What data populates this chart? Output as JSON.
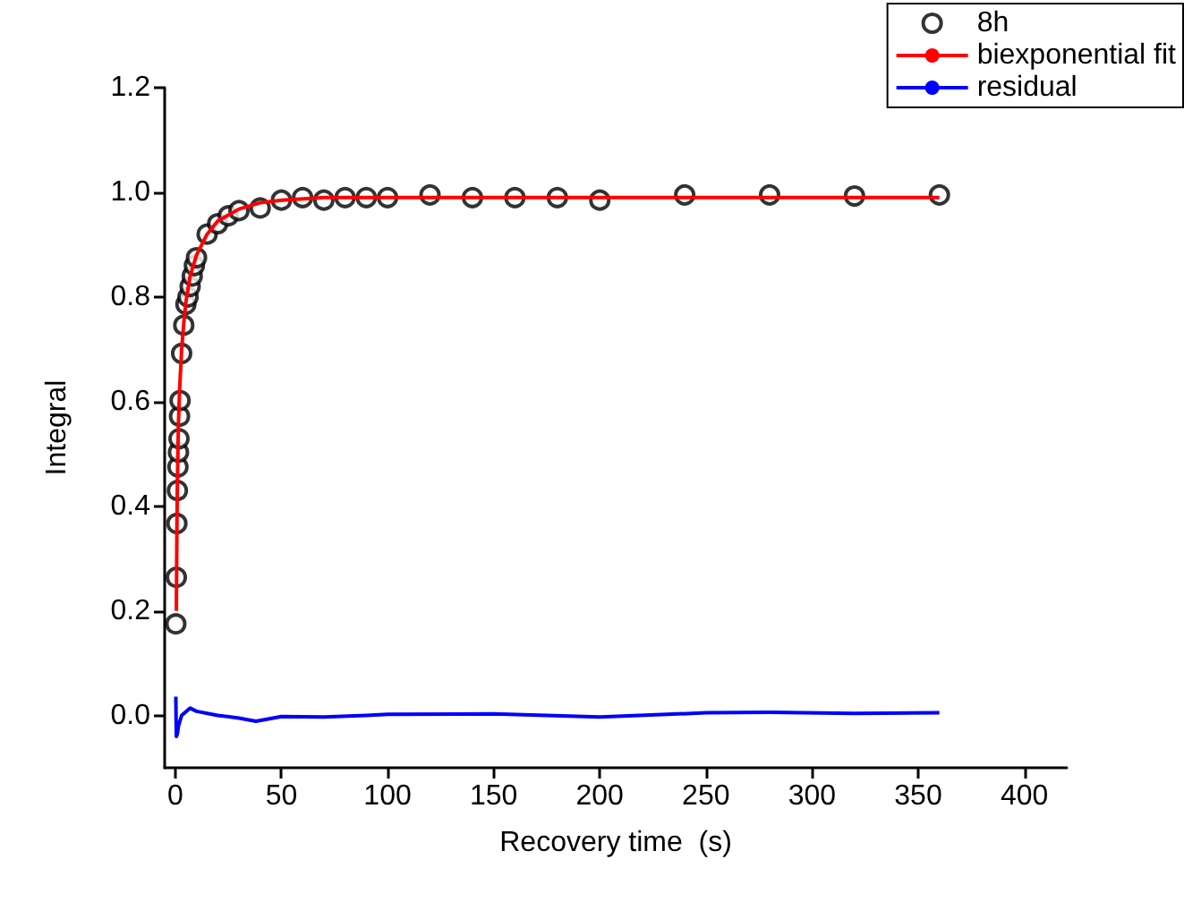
{
  "chart_data": {
    "type": "scatter",
    "xlabel": "Recovery time  (s)",
    "ylabel": "Integral",
    "xlim": [
      -5,
      420
    ],
    "xticks": [
      0,
      50,
      100,
      150,
      200,
      250,
      300,
      350,
      400
    ],
    "ylim": [
      -0.1,
      1.2
    ],
    "yticks": [
      {
        "value": 0,
        "label": "0.0"
      },
      0.2,
      0.4,
      0.6,
      0.8,
      {
        "value": 1,
        "label": "1.0"
      },
      1.2
    ],
    "grid": false,
    "legend": "top right",
    "series": [
      {
        "name": "8h",
        "marker": "circle",
        "color": "#000000",
        "x": [
          0.25,
          0.5,
          0.75,
          1,
          1.25,
          1.5,
          1.75,
          2,
          2.25,
          3,
          4,
          5,
          6,
          7,
          8,
          9,
          10,
          15,
          20,
          25,
          30,
          40,
          50,
          60,
          70,
          80,
          90,
          100,
          120,
          140,
          160,
          180,
          200,
          240,
          280,
          320,
          360
        ],
        "values": [
          0.175,
          0.264,
          0.367,
          0.43,
          0.475,
          0.503,
          0.529,
          0.572,
          0.602,
          0.692,
          0.746,
          0.786,
          0.8,
          0.82,
          0.84,
          0.86,
          0.875,
          0.92,
          0.94,
          0.955,
          0.965,
          0.97,
          0.985,
          0.99,
          0.985,
          0.99,
          0.99,
          0.99,
          0.995,
          0.99,
          0.99,
          0.99,
          0.985,
          0.995,
          0.995,
          0.993,
          0.995
        ]
      },
      {
        "name": "biexponential fit",
        "type": "line",
        "marker": "none",
        "color": "#ff0000",
        "x": [
          0.5,
          0.75,
          1,
          1.5,
          2,
          3,
          4,
          5,
          7,
          10,
          15,
          20,
          30,
          40,
          50,
          70,
          100,
          200,
          360
        ],
        "values": [
          0.2,
          0.35,
          0.45,
          0.56,
          0.62,
          0.7,
          0.75,
          0.79,
          0.84,
          0.88,
          0.92,
          0.945,
          0.968,
          0.98,
          0.985,
          0.99,
          0.99,
          0.99,
          0.99
        ]
      },
      {
        "name": "residual",
        "type": "line",
        "marker": "none",
        "color": "#0000ff",
        "x": [
          0.25,
          0.5,
          1,
          1.5,
          3,
          7,
          10,
          20,
          30,
          38,
          50,
          70,
          90,
          100,
          150,
          200,
          250,
          280,
          320,
          360
        ],
        "values": [
          0.036,
          -0.04,
          -0.035,
          -0.02,
          0.0,
          0.014,
          0.008,
          0.0,
          -0.005,
          -0.011,
          -0.002,
          -0.003,
          0.0,
          0.002,
          0.003,
          -0.003,
          0.005,
          0.006,
          0.004,
          0.005
        ]
      }
    ]
  }
}
